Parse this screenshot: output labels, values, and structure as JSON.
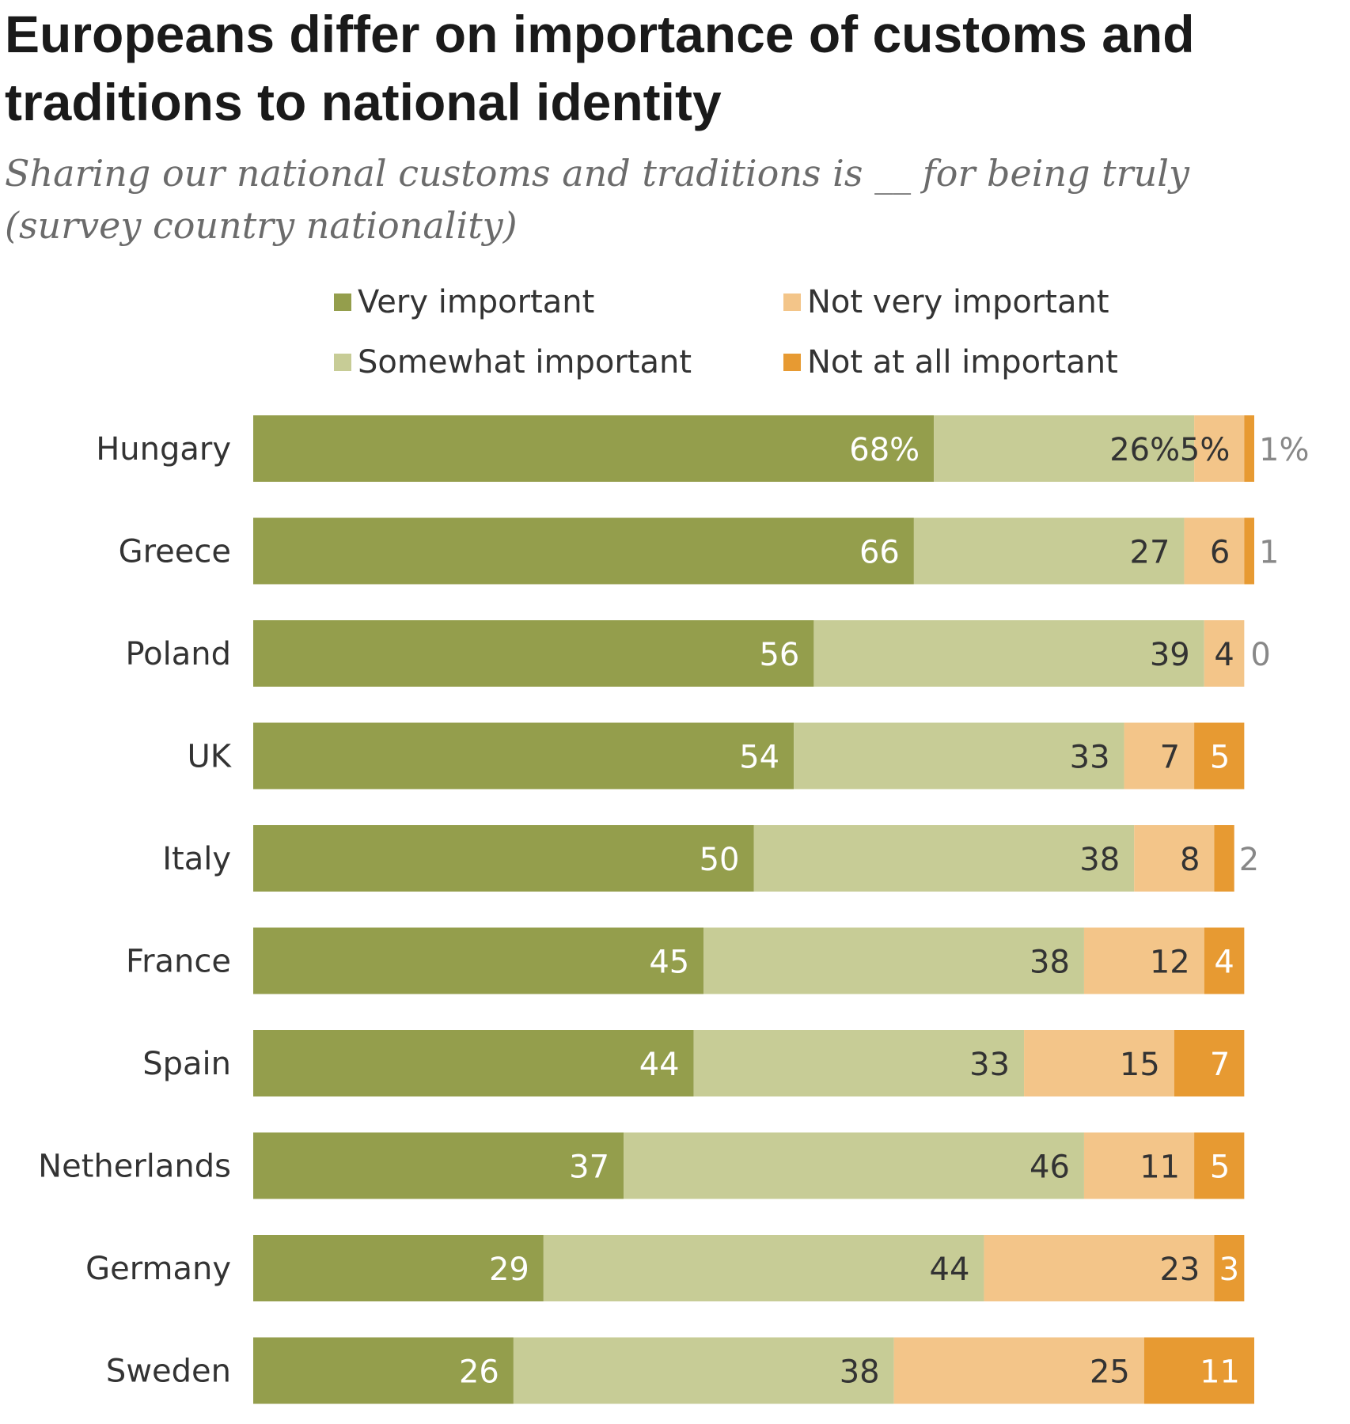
{
  "colors": {
    "very_important": "#949e4c",
    "somewhat_important": "#c7cc96",
    "not_very_important": "#f3c589",
    "not_at_all_important": "#e79a32",
    "label_light": "#ffffff",
    "label_dark": "#333333",
    "label_outside": "#888888",
    "category_label": "#333333"
  },
  "chart_data": {
    "type": "bar",
    "orientation": "horizontal",
    "stacked": true,
    "title": "Europeans differ on importance of customs and traditions to national identity",
    "subtitle": "Sharing our national customs and traditions is __ for being truly (survey country nationality)",
    "categories": [
      "Hungary",
      "Greece",
      "Poland",
      "UK",
      "Italy",
      "France",
      "Spain",
      "Netherlands",
      "Germany",
      "Sweden"
    ],
    "series": [
      {
        "name": "Very important",
        "values": [
          68,
          66,
          56,
          54,
          50,
          45,
          44,
          37,
          29,
          26
        ]
      },
      {
        "name": "Somewhat important",
        "values": [
          26,
          27,
          39,
          33,
          38,
          38,
          33,
          46,
          44,
          38
        ]
      },
      {
        "name": "Not very important",
        "values": [
          5,
          6,
          4,
          7,
          8,
          12,
          15,
          11,
          23,
          25
        ]
      },
      {
        "name": "Not at all important",
        "values": [
          1,
          1,
          0,
          5,
          2,
          4,
          7,
          5,
          3,
          11
        ]
      }
    ],
    "data_labels": [
      [
        "68%",
        "26%",
        "5%",
        "1%"
      ],
      [
        "66",
        "27",
        "6",
        "1"
      ],
      [
        "56",
        "39",
        "4",
        "0"
      ],
      [
        "54",
        "33",
        "7",
        "5"
      ],
      [
        "50",
        "38",
        "8",
        "2"
      ],
      [
        "45",
        "38",
        "12",
        "4"
      ],
      [
        "44",
        "33",
        "15",
        "7"
      ],
      [
        "37",
        "46",
        "11",
        "5"
      ],
      [
        "29",
        "44",
        "23",
        "3"
      ],
      [
        "26",
        "38",
        "25",
        "11"
      ]
    ],
    "xlim": [
      0,
      100
    ],
    "legend_position": "top",
    "grid": false
  }
}
